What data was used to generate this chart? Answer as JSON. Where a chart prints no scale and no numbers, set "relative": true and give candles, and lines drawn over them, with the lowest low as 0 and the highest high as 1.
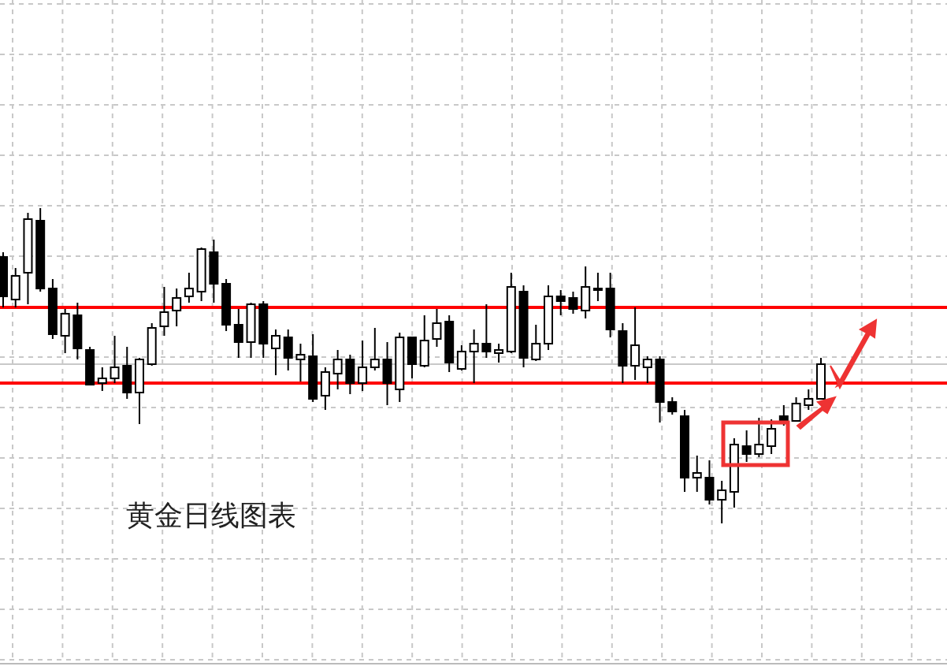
{
  "chart_data": {
    "type": "candlestick",
    "relative": true,
    "grid": true,
    "categories": [
      null,
      null,
      null,
      null,
      null,
      null,
      null,
      null,
      null,
      null,
      null,
      null,
      null,
      null,
      null,
      null,
      null,
      null,
      null,
      null,
      null,
      null,
      null,
      null,
      null,
      null,
      null,
      null,
      null,
      null,
      null,
      null,
      null,
      null,
      null,
      null,
      null,
      null,
      null,
      null,
      null,
      null,
      null,
      null,
      null,
      null,
      null,
      null,
      null,
      null,
      null,
      null,
      null,
      null,
      null,
      null,
      null,
      null,
      null,
      null,
      null,
      null,
      null,
      null,
      null,
      null,
      null
    ],
    "ohlc": [
      [
        0.845,
        0.86,
        0.685,
        0.72
      ],
      [
        0.71,
        0.81,
        0.685,
        0.785
      ],
      [
        0.795,
        0.985,
        0.695,
        0.965
      ],
      [
        0.96,
        1.0,
        0.735,
        0.745
      ],
      [
        0.745,
        0.775,
        0.585,
        0.6
      ],
      [
        0.595,
        0.68,
        0.54,
        0.665
      ],
      [
        0.66,
        0.7,
        0.52,
        0.555
      ],
      [
        0.55,
        0.56,
        0.44,
        0.44
      ],
      [
        0.445,
        0.495,
        0.42,
        0.46
      ],
      [
        0.46,
        0.595,
        0.445,
        0.495
      ],
      [
        0.5,
        0.56,
        0.395,
        0.415
      ],
      [
        0.415,
        0.525,
        0.315,
        0.52
      ],
      [
        0.505,
        0.635,
        0.5,
        0.62
      ],
      [
        0.625,
        0.75,
        0.595,
        0.67
      ],
      [
        0.675,
        0.745,
        0.625,
        0.715
      ],
      [
        0.72,
        0.795,
        0.7,
        0.745
      ],
      [
        0.735,
        0.875,
        0.705,
        0.87
      ],
      [
        0.86,
        0.9,
        0.7,
        0.76
      ],
      [
        0.76,
        0.775,
        0.61,
        0.63
      ],
      [
        0.63,
        0.68,
        0.525,
        0.575
      ],
      [
        0.575,
        0.7,
        0.525,
        0.695
      ],
      [
        0.695,
        0.705,
        0.525,
        0.57
      ],
      [
        0.555,
        0.615,
        0.47,
        0.595
      ],
      [
        0.59,
        0.615,
        0.485,
        0.525
      ],
      [
        0.52,
        0.57,
        0.45,
        0.535
      ],
      [
        0.53,
        0.6,
        0.385,
        0.395
      ],
      [
        0.405,
        0.495,
        0.36,
        0.48
      ],
      [
        0.475,
        0.55,
        0.425,
        0.52
      ],
      [
        0.52,
        0.535,
        0.41,
        0.445
      ],
      [
        0.445,
        0.58,
        0.42,
        0.495
      ],
      [
        0.495,
        0.62,
        0.485,
        0.52
      ],
      [
        0.52,
        0.575,
        0.375,
        0.445
      ],
      [
        0.425,
        0.605,
        0.385,
        0.59
      ],
      [
        0.59,
        0.59,
        0.46,
        0.505
      ],
      [
        0.5,
        0.66,
        0.495,
        0.58
      ],
      [
        0.585,
        0.68,
        0.56,
        0.635
      ],
      [
        0.64,
        0.66,
        0.48,
        0.51
      ],
      [
        0.49,
        0.565,
        0.485,
        0.545
      ],
      [
        0.545,
        0.615,
        0.445,
        0.57
      ],
      [
        0.57,
        0.695,
        0.525,
        0.545
      ],
      [
        0.54,
        0.57,
        0.51,
        0.55
      ],
      [
        0.545,
        0.795,
        0.54,
        0.75
      ],
      [
        0.735,
        0.755,
        0.495,
        0.525
      ],
      [
        0.52,
        0.63,
        0.515,
        0.57
      ],
      [
        0.57,
        0.755,
        0.55,
        0.72
      ],
      [
        0.72,
        0.74,
        0.66,
        0.705
      ],
      [
        0.715,
        0.735,
        0.665,
        0.68
      ],
      [
        0.675,
        0.815,
        0.65,
        0.75
      ],
      [
        0.74,
        0.795,
        0.705,
        0.745
      ],
      [
        0.745,
        0.795,
        0.59,
        0.615
      ],
      [
        0.61,
        0.635,
        0.445,
        0.5
      ],
      [
        0.5,
        0.685,
        0.455,
        0.565
      ],
      [
        0.495,
        0.53,
        0.445,
        0.52
      ],
      [
        0.52,
        0.53,
        0.32,
        0.385
      ],
      [
        0.385,
        0.4,
        0.345,
        0.355
      ],
      [
        0.34,
        0.36,
        0.1,
        0.145
      ],
      [
        0.145,
        0.215,
        0.1,
        0.16
      ],
      [
        0.145,
        0.2,
        0.06,
        0.075
      ],
      [
        0.075,
        0.135,
        0.0,
        0.105
      ],
      [
        0.1,
        0.27,
        0.05,
        0.25
      ],
      [
        0.245,
        0.295,
        0.195,
        0.22
      ],
      [
        0.22,
        0.335,
        0.21,
        0.25
      ],
      [
        0.245,
        0.33,
        0.22,
        0.3
      ],
      [
        0.34,
        0.375,
        0.31,
        0.325
      ],
      [
        0.325,
        0.4,
        0.325,
        0.38
      ],
      [
        0.375,
        0.425,
        0.36,
        0.395
      ],
      [
        0.395,
        0.525,
        0.395,
        0.505
      ]
    ],
    "ref_lines": [
      {
        "axis": "y",
        "value": 0.685,
        "color": "#ff0000"
      },
      {
        "axis": "y",
        "value": 0.445,
        "color": "#ff0000"
      },
      {
        "axis": "y",
        "value": 0.505,
        "color": "#c8c8c8"
      }
    ],
    "annotations": [
      "黄金日线图表"
    ]
  }
}
